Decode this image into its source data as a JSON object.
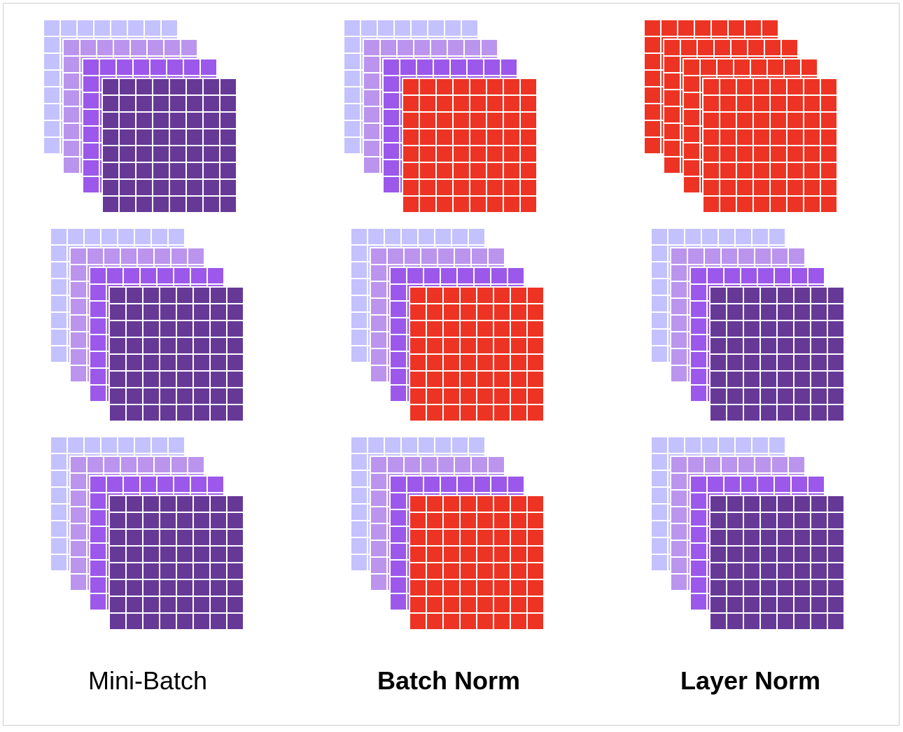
{
  "captions": {
    "mini_batch": "Mini-Batch",
    "batch_norm": "Batch Norm",
    "layer_norm": "Layer Norm"
  },
  "grid": {
    "rows": 8,
    "cols": 8
  },
  "colors": {
    "layer_1": "#c4c1ff",
    "layer_2": "#bb94ee",
    "layer_3": "#9c58ea",
    "layer_4": "#673997",
    "highlight": "#ed3424",
    "cell_border": "#ffffff"
  },
  "panels": [
    {
      "name": "mini-batch",
      "samples": [
        [
          "layer_1",
          "layer_2",
          "layer_3",
          "layer_4"
        ],
        [
          "layer_1",
          "layer_2",
          "layer_3",
          "layer_4"
        ],
        [
          "layer_1",
          "layer_2",
          "layer_3",
          "layer_4"
        ]
      ]
    },
    {
      "name": "batch-norm",
      "samples": [
        [
          "layer_1",
          "layer_2",
          "layer_3",
          "highlight"
        ],
        [
          "layer_1",
          "layer_2",
          "layer_3",
          "highlight"
        ],
        [
          "layer_1",
          "layer_2",
          "layer_3",
          "highlight"
        ]
      ]
    },
    {
      "name": "layer-norm",
      "samples": [
        [
          "highlight",
          "highlight",
          "highlight",
          "highlight"
        ],
        [
          "layer_1",
          "layer_2",
          "layer_3",
          "layer_4"
        ],
        [
          "layer_1",
          "layer_2",
          "layer_3",
          "layer_4"
        ]
      ]
    }
  ]
}
